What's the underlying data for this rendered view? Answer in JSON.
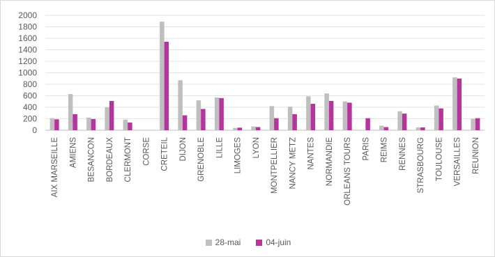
{
  "chart_data": {
    "type": "bar",
    "categories": [
      "AIX MARSEILLE",
      "AMIENS",
      "BESANCON",
      "BORDEAUX",
      "CLERMONT",
      "CORSE",
      "CRETEIL",
      "DIJON",
      "GRENOBLE",
      "LILLE",
      "LIMOGES",
      "LYON",
      "MONTPELLIER",
      "NANCY METZ",
      "NANTES",
      "NORMANDIE",
      "ORLEANS TOURS",
      "PARIS",
      "REIMS",
      "RENNES",
      "STRASBOURG",
      "TOULOUSE",
      "VERSAILLES",
      "REUNION"
    ],
    "series": [
      {
        "name": "28-mai",
        "color": "#bfbfbf",
        "values": [
          210,
          630,
          220,
          400,
          185,
          0,
          1890,
          870,
          520,
          570,
          40,
          65,
          420,
          410,
          590,
          640,
          500,
          0,
          80,
          330,
          50,
          430,
          920,
          200
        ]
      },
      {
        "name": "04-juin",
        "color": "#b5359c",
        "values": [
          190,
          280,
          195,
          510,
          135,
          0,
          1540,
          260,
          370,
          560,
          45,
          55,
          210,
          280,
          460,
          510,
          480,
          210,
          55,
          290,
          50,
          380,
          900,
          210
        ]
      }
    ],
    "ylim": [
      0,
      2000
    ],
    "yticks": [
      "0",
      "200",
      "400",
      "600",
      "800",
      "1000",
      "1200",
      "1400",
      "1600",
      "1800",
      "2000"
    ],
    "grid": true,
    "legend_position": "bottom"
  }
}
